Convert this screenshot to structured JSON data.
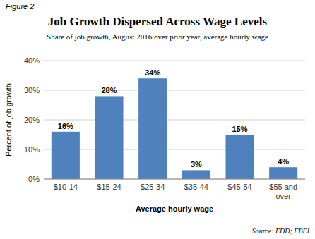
{
  "chart_data": {
    "type": "bar",
    "title": "Job Growth Dispersed Across Wage Levels",
    "subtitle": "Share of job growth, August 2016 over prior year, average hourly wage",
    "figure_label": "Figure 2",
    "source": "Source: EDD; FBEI",
    "xlabel": "Average hourly wage",
    "ylabel": "Percent of job growth",
    "categories": [
      "$10-14",
      "$15-24",
      "$25-34",
      "$35-44",
      "$45-54",
      "$55 and\nover"
    ],
    "values": [
      16,
      28,
      34,
      3,
      15,
      4
    ],
    "value_labels": [
      "16%",
      "28%",
      "34%",
      "3%",
      "15%",
      "4%"
    ],
    "data_labels": true,
    "color": "#4F81BD",
    "ylim": [
      0,
      40
    ],
    "yticks": [
      {
        "value": 0,
        "label": "0%"
      },
      {
        "value": 10,
        "label": "10%"
      },
      {
        "value": 20,
        "label": "20%"
      },
      {
        "value": 30,
        "label": "30%"
      },
      {
        "value": 40,
        "label": "40%"
      }
    ],
    "grid": true
  }
}
